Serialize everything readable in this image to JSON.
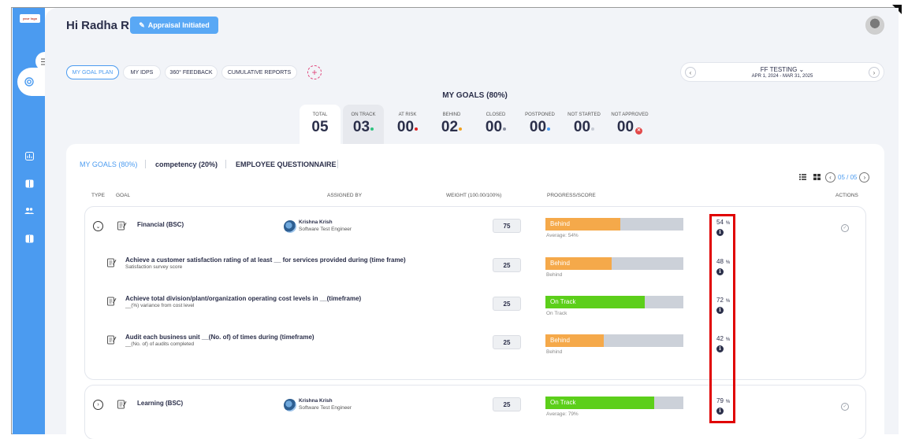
{
  "logo": {
    "text": "your logo"
  },
  "header": {
    "greeting": "Hi Radha R",
    "status_button": "Appraisal Initiated"
  },
  "tabs": [
    "MY GOAL PLAN",
    "MY IDPS",
    "360° FEEDBACK",
    "CUMULATIVE REPORTS"
  ],
  "period": {
    "name": "FF TESTING",
    "dates": "APR 1, 2024 - MAR 31, 2025"
  },
  "section_title": "MY GOALS (80%)",
  "stats": [
    {
      "label": "TOTAL",
      "value": "05",
      "dot": ""
    },
    {
      "label": "ON TRACK",
      "value": "03",
      "dot": "#2ec27e"
    },
    {
      "label": "AT RISK",
      "value": "00",
      "dot": "#e02020"
    },
    {
      "label": "BEHIND",
      "value": "02",
      "dot": "#f0a020"
    },
    {
      "label": "CLOSED",
      "value": "00",
      "dot": "#888ea0"
    },
    {
      "label": "POSTPONED",
      "value": "00",
      "dot": "#4b9bf0"
    },
    {
      "label": "NOT STARTED",
      "value": "00",
      "dot": "#c8ccd6"
    },
    {
      "label": "NOT APPROVED",
      "value": "00",
      "dot": "x"
    }
  ],
  "subtabs": [
    "MY GOALS (80%)",
    "competency (20%)",
    "EMPLOYEE QUESTIONNAIRE"
  ],
  "pager": {
    "text": "05 / 05"
  },
  "columns": {
    "type": "TYPE",
    "goal": "GOAL",
    "assigned_by": "ASSIGNED BY",
    "weight": "WEIGHT (100.00/100%)",
    "progress": "PROGRESS/SCORE",
    "actions": "ACTIONS"
  },
  "groups": [
    {
      "name": "Financial (BSC)",
      "assignee": {
        "name": "Krishna Krish",
        "role": "Software Test Engineer"
      },
      "weight": "75",
      "status": "Behind",
      "progress": 0.54,
      "note": "Average: 54%",
      "percent": "54",
      "goals": [
        {
          "name": "Achieve a customer satisfaction rating of at least __ for services provided during (time frame)",
          "sub": "Satisfaction survey score",
          "weight": "25",
          "status": "Behind",
          "progress": 0.48,
          "note": "Behind",
          "percent": "48"
        },
        {
          "name": "Achieve total division/plant/organization operating cost levels in __(timeframe)",
          "sub": "__(%) variance from cost level",
          "weight": "25",
          "status": "On Track",
          "progress": 0.72,
          "note": "On Track",
          "percent": "72"
        },
        {
          "name": "Audit each business unit __(No. of) of times during (timeframe)",
          "sub": "__(No. of) of audits completed",
          "weight": "25",
          "status": "Behind",
          "progress": 0.42,
          "note": "Behind",
          "percent": "42"
        }
      ]
    },
    {
      "name": "Learning (BSC)",
      "assignee": {
        "name": "Krishna Krish",
        "role": "Software Test Engineer"
      },
      "weight": "25",
      "status": "On Track",
      "progress": 0.79,
      "note": "Average: 79%",
      "percent": "79",
      "goals": []
    }
  ],
  "percent_sign": "%",
  "colors": {
    "accent": "#4b9bf0",
    "behind": "#f5a94a",
    "on_track": "#5ccf1a",
    "highlight": "#e00000"
  }
}
